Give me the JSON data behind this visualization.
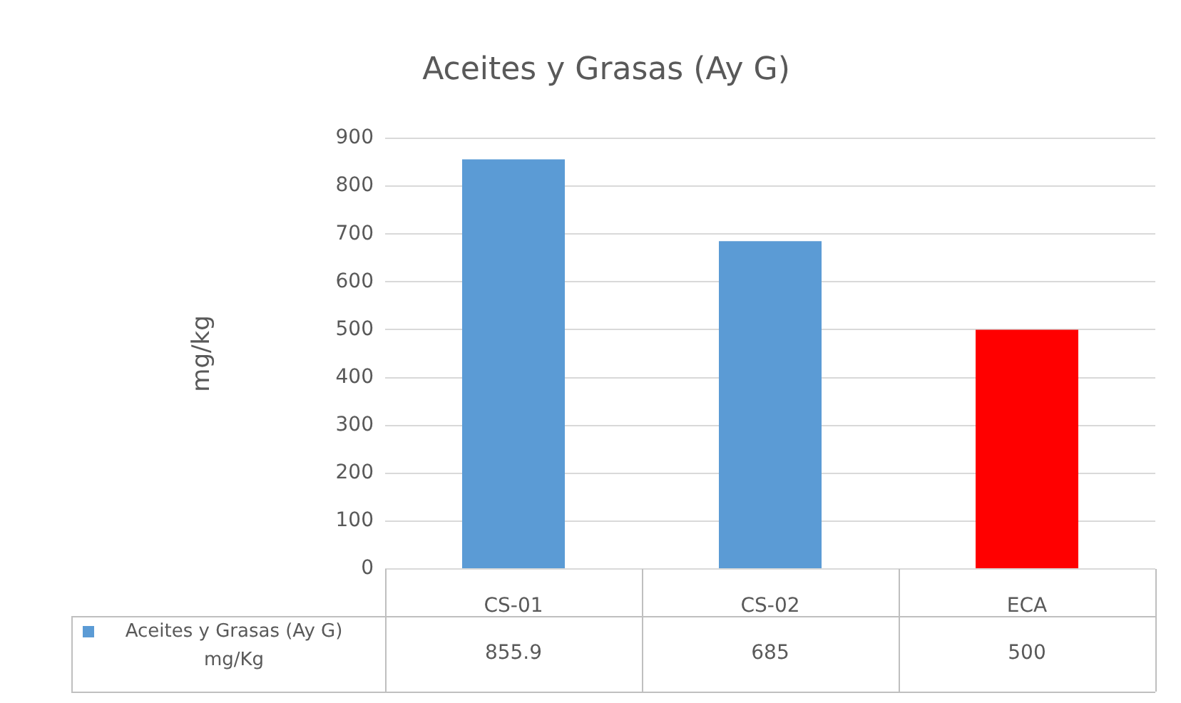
{
  "chart_data": {
    "type": "bar",
    "title": "Aceites y Grasas (Ay G)",
    "ylabel": "mg/kg",
    "categories": [
      "CS-01",
      "CS-02",
      "ECA"
    ],
    "series": [
      {
        "name": "Aceites y Grasas (Ay G) mg/Kg",
        "color": "#5b9bd5",
        "colors": [
          "#5b9bd5",
          "#5b9bd5",
          "#ff0000"
        ],
        "values": [
          855.9,
          685,
          500
        ]
      }
    ],
    "ylim": [
      0,
      900
    ],
    "yticks": [
      0,
      100,
      200,
      300,
      400,
      500,
      600,
      700,
      800,
      900
    ],
    "grid": "y",
    "legend": "bottom",
    "data_labels": true
  }
}
